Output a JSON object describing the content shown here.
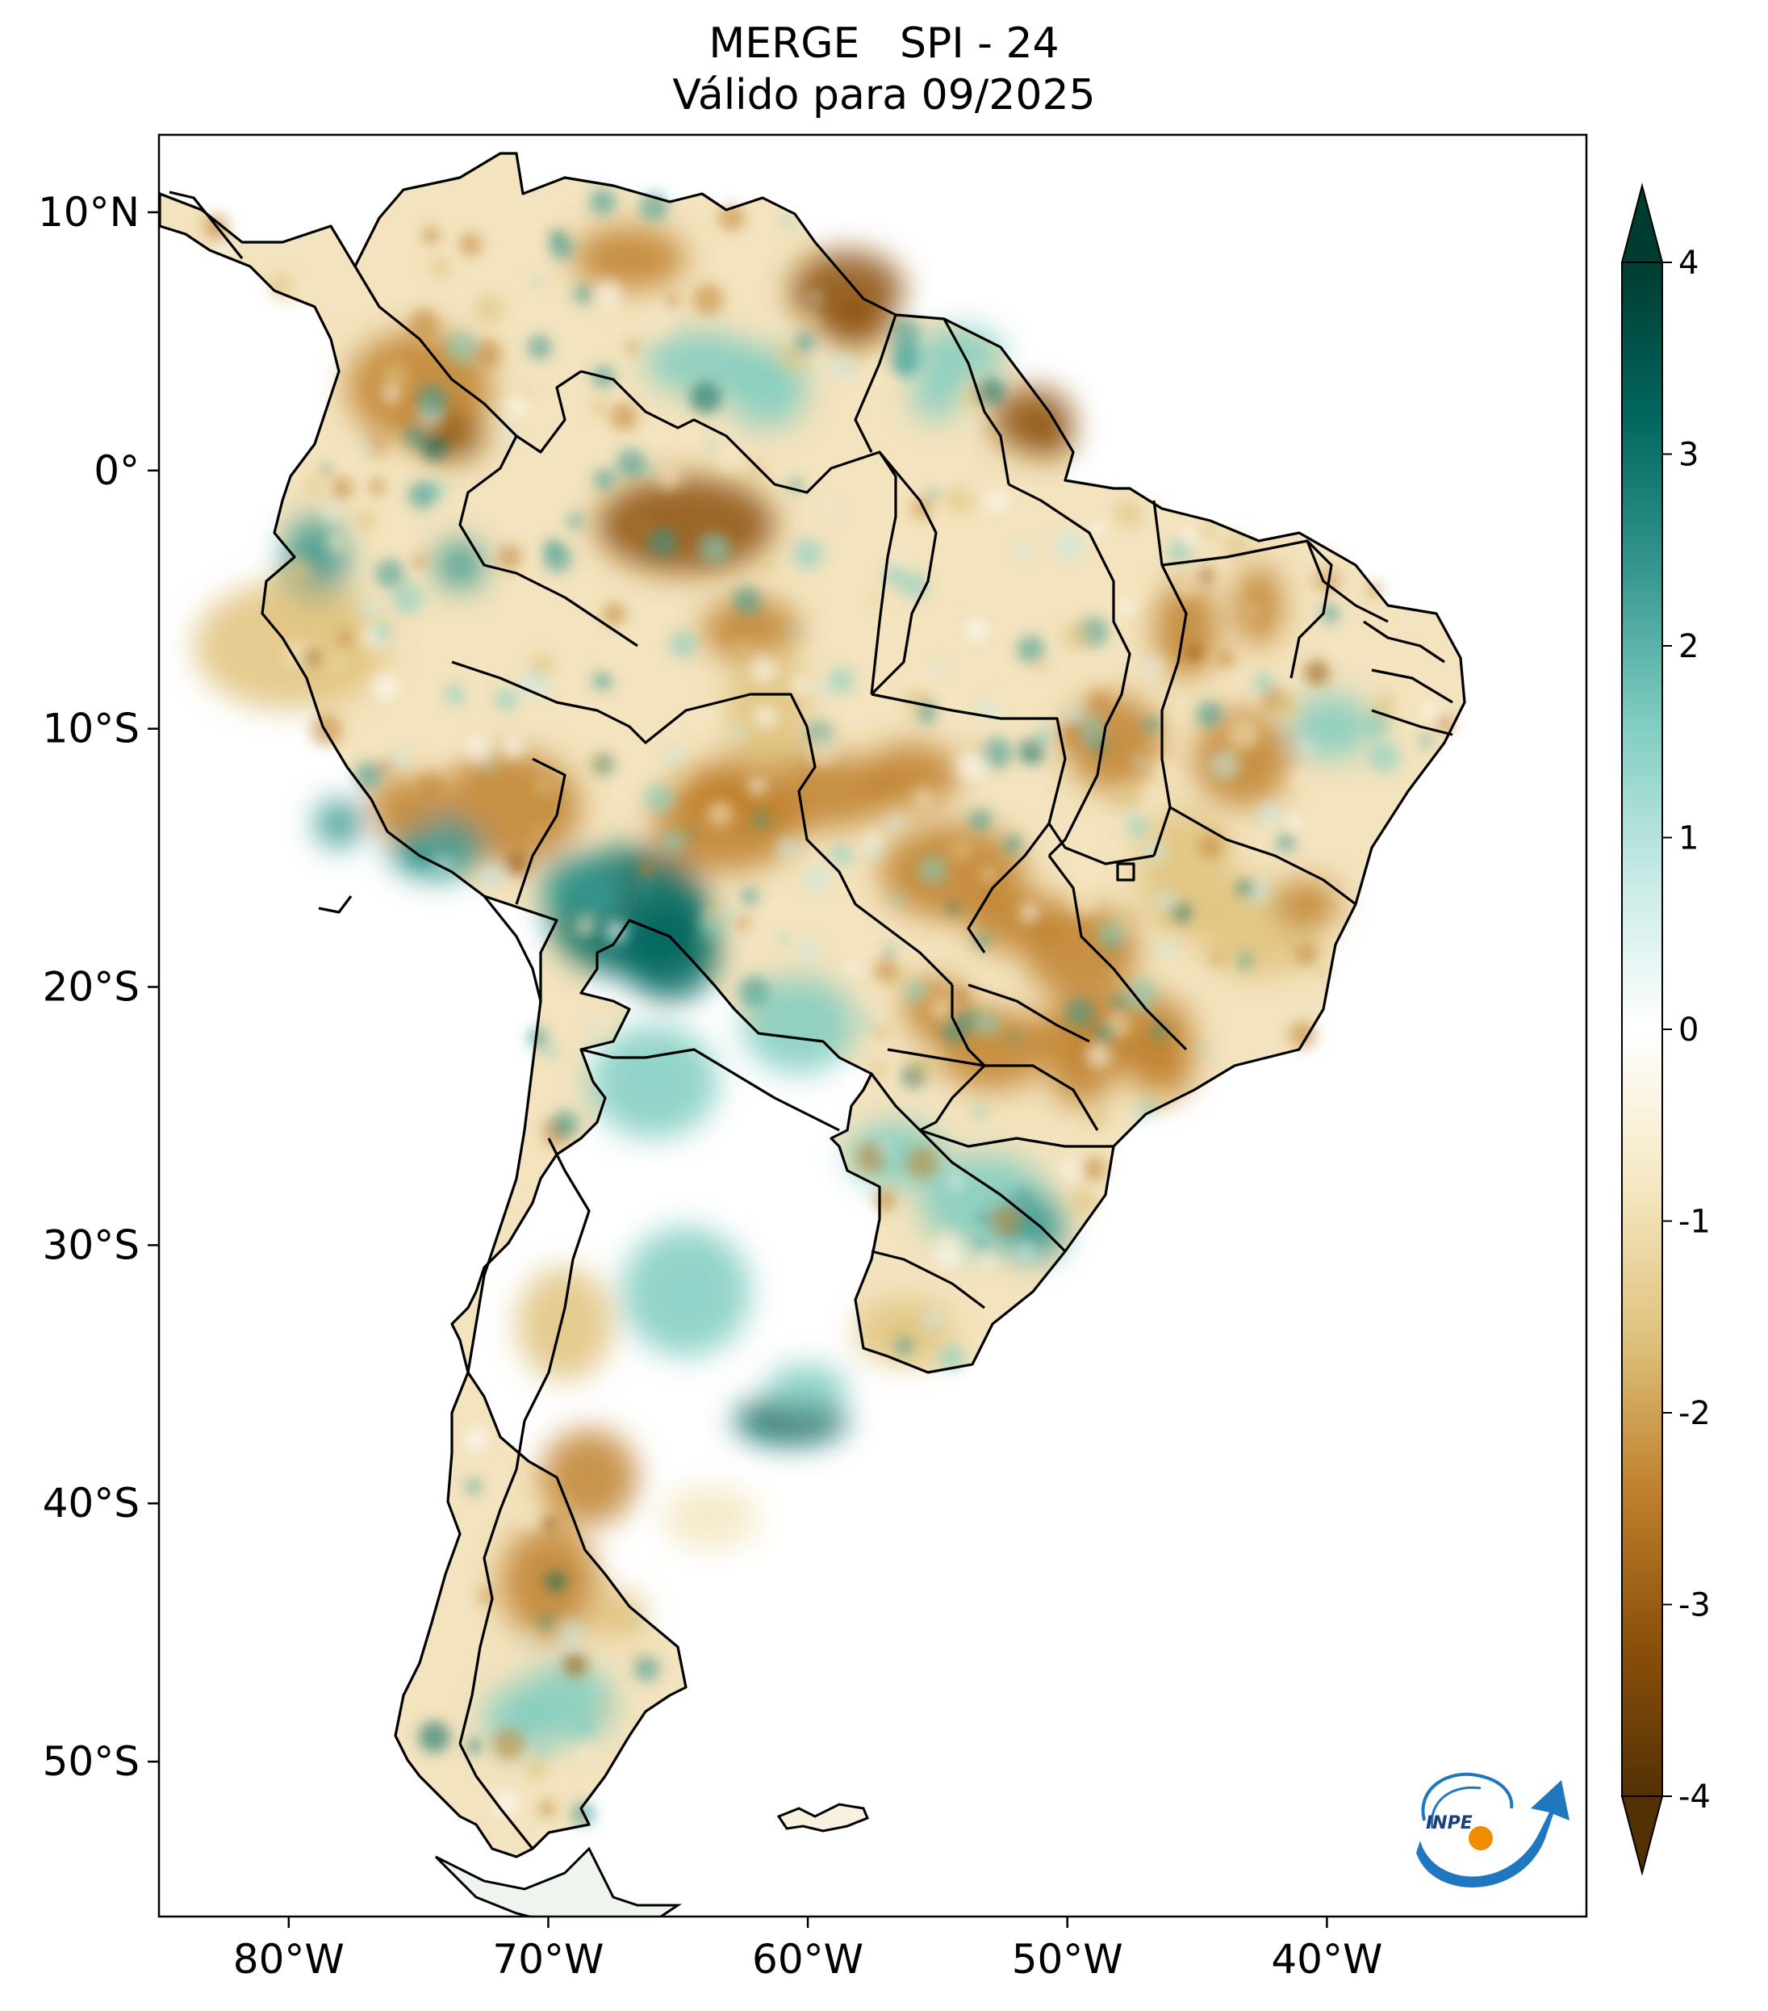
{
  "title": {
    "line1": "MERGE   SPI - 24",
    "line2": "Válido para 09/2025"
  },
  "map": {
    "lon_range": [
      -85,
      -30
    ],
    "lat_range": [
      -56,
      13
    ],
    "lat_ticks": [
      {
        "value": 10,
        "label": "10°N"
      },
      {
        "value": 0,
        "label": "0°"
      },
      {
        "value": -10,
        "label": "10°S"
      },
      {
        "value": -20,
        "label": "20°S"
      },
      {
        "value": -30,
        "label": "30°S"
      },
      {
        "value": -40,
        "label": "40°S"
      },
      {
        "value": -50,
        "label": "50°S"
      }
    ],
    "lon_ticks": [
      {
        "value": -80,
        "label": "80°W"
      },
      {
        "value": -70,
        "label": "70°W"
      },
      {
        "value": -60,
        "label": "60°W"
      },
      {
        "value": -50,
        "label": "50°W"
      },
      {
        "value": -40,
        "label": "40°W"
      }
    ]
  },
  "colorbar": {
    "min": -4,
    "max": 4,
    "extend": "both",
    "ticks": [
      {
        "value": 4,
        "label": "4"
      },
      {
        "value": 3,
        "label": "3"
      },
      {
        "value": 2,
        "label": "2"
      },
      {
        "value": 1,
        "label": "1"
      },
      {
        "value": 0,
        "label": "0"
      },
      {
        "value": -1,
        "label": "-1"
      },
      {
        "value": -2,
        "label": "-2"
      },
      {
        "value": -3,
        "label": "-3"
      },
      {
        "value": -4,
        "label": "-4"
      }
    ],
    "colors": [
      "#543005",
      "#8c510a",
      "#bf812d",
      "#dfc27d",
      "#f6e8c3",
      "#ffffff",
      "#c7eae5",
      "#80cdc1",
      "#35978f",
      "#01665e",
      "#003c30"
    ]
  },
  "logo": {
    "text": "INPE",
    "colors": {
      "blue": "#1f77c0",
      "orange": "#f08c00"
    }
  }
}
